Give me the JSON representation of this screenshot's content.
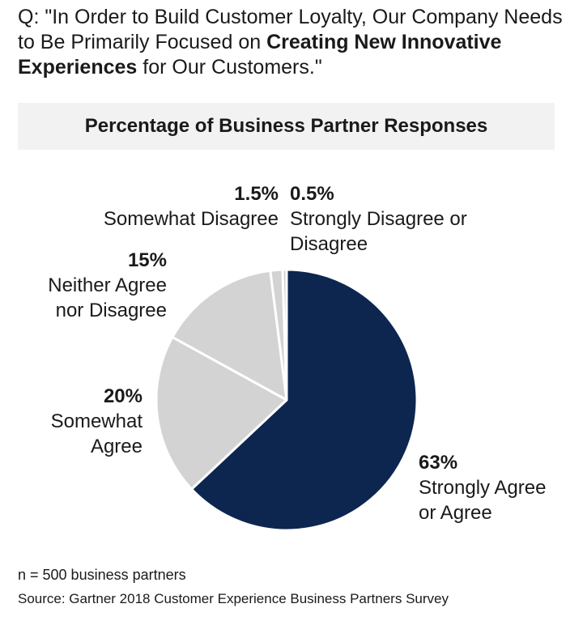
{
  "question": {
    "prefix": "Q: \"In Order to Build Customer Loyalty, Our Company Needs to Be Primarily Focused on ",
    "bold": "Creating New Innovative Experiences",
    "suffix": " for Our Customers.\""
  },
  "subtitle": "Percentage of Business Partner Responses",
  "chart_data": {
    "type": "pie",
    "title": "Percentage of Business Partner Responses",
    "slices": [
      {
        "label": "Strongly Agree or Agree",
        "value": 63,
        "display": "63%",
        "color": "#0c2650"
      },
      {
        "label": "Somewhat Agree",
        "value": 20,
        "display": "20%",
        "color": "#d3d3d3"
      },
      {
        "label": "Neither Agree nor Disagree",
        "value": 15,
        "display": "15%",
        "color": "#d3d3d3"
      },
      {
        "label": "Somewhat Disagree",
        "value": 1.5,
        "display": "1.5%",
        "color": "#d3d3d3"
      },
      {
        "label": "Strongly Disagree or Disagree",
        "value": 0.5,
        "display": "0.5%",
        "color": "#d3d3d3"
      }
    ],
    "labels": {
      "strongly_agree": {
        "pct": "63%",
        "line1": "Strongly Agree",
        "line2": "or Agree"
      },
      "somewhat_agree": {
        "pct": "20%",
        "line1": "Somewhat",
        "line2": "Agree"
      },
      "neither": {
        "pct": "15%",
        "line1": "Neither Agree",
        "line2": "nor Disagree"
      },
      "somewhat_disagree": {
        "pct": "1.5%",
        "line1": "Somewhat Disagree"
      },
      "strongly_disagree": {
        "pct": "0.5%",
        "line1": "Strongly Disagree or",
        "line2": "Disagree"
      }
    }
  },
  "footnotes": {
    "n": "n = 500 business partners",
    "source": "Source:  Gartner 2018 Customer Experience Business Partners Survey"
  }
}
